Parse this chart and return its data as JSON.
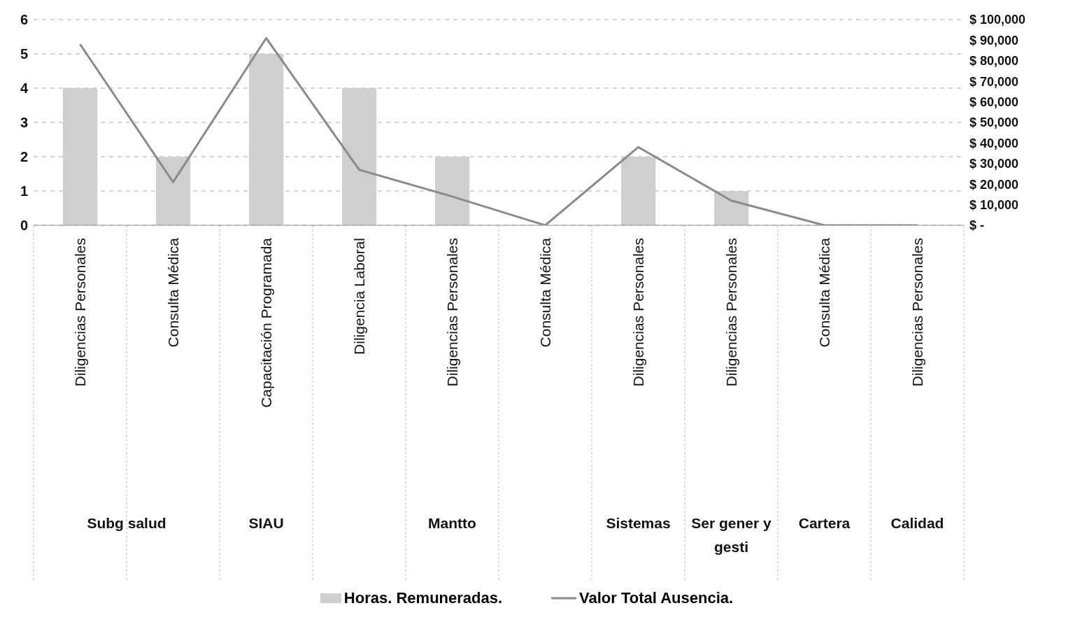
{
  "chart_data": {
    "type": "bar",
    "categories": [
      "Diligencias Personales",
      "Consulta Médica",
      "Capacitación Programada",
      "Diligencia Laboral",
      "Diligencias Personales",
      "Consulta Médica",
      "Diligencias Personales",
      "Diligencias Personales",
      "Consulta Médica",
      "Diligencias Personales"
    ],
    "series": [
      {
        "name": "Horas. Remuneradas.",
        "color": "#cfcfcf",
        "values": [
          4,
          2,
          5,
          4,
          2,
          0,
          2,
          1,
          0,
          0
        ]
      },
      {
        "name": "Valor Total Ausencia.",
        "type": "line",
        "axis": "y2",
        "color": "#8a8a8a",
        "values": [
          88000,
          21000,
          91000,
          27000,
          14000,
          0,
          38000,
          12000,
          0,
          0
        ]
      }
    ],
    "annotations": [
      "Subg salud",
      "SIAU",
      "Mantto",
      "Sistemas",
      "Ser gener y gesti",
      "Cartera",
      "Calidad"
    ],
    "ylim": [
      0,
      6
    ],
    "yticks": [
      0,
      1,
      2,
      3,
      4,
      5,
      6
    ],
    "y2lim": [
      0,
      100000
    ],
    "y2ticks": [
      {
        "value": 0,
        "label": "$ -"
      },
      {
        "value": 10000,
        "label": "$ 10,000"
      },
      {
        "value": 20000,
        "label": "$ 20,000"
      },
      {
        "value": 30000,
        "label": "$ 30,000"
      },
      {
        "value": 40000,
        "label": "$ 40,000"
      },
      {
        "value": 50000,
        "label": "$ 50,000"
      },
      {
        "value": 60000,
        "label": "$ 60,000"
      },
      {
        "value": 70000,
        "label": "$ 70,000"
      },
      {
        "value": 80000,
        "label": "$ 80,000"
      },
      {
        "value": 90000,
        "label": "$ 90,000"
      },
      {
        "value": 100000,
        "label": "$ 100,000"
      }
    ],
    "grid": "y",
    "legend": "bottom",
    "marker": "none",
    "line_style": "solid"
  }
}
